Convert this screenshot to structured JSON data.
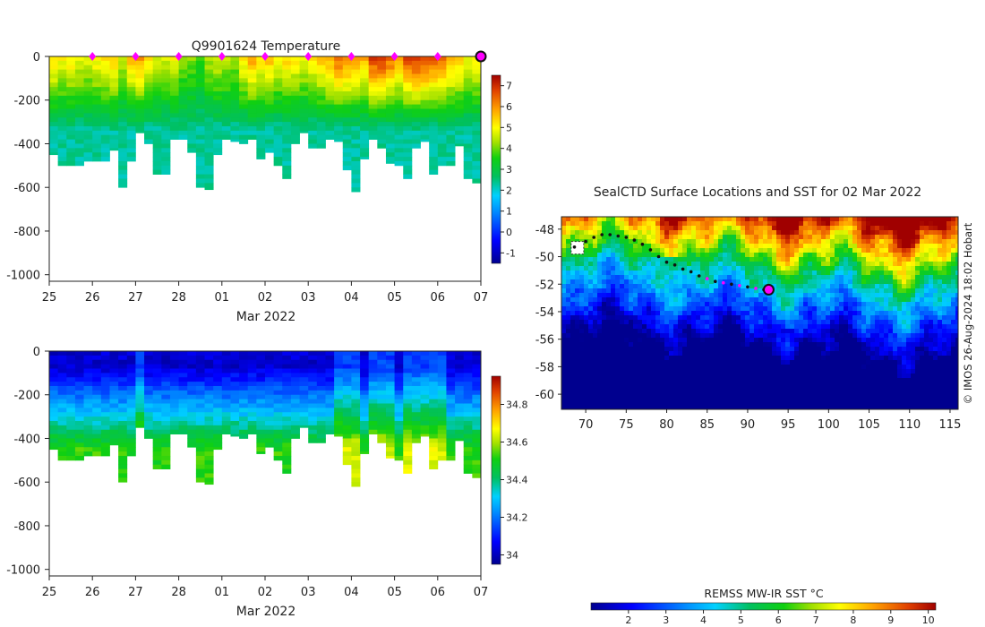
{
  "chart_data": [
    {
      "type": "heatmap",
      "panel": "temperature-section",
      "title": "Q9901624  Temperature",
      "xlabel": "Mar 2022",
      "x_tick_labels": [
        "25",
        "26",
        "27",
        "28",
        "01",
        "02",
        "03",
        "04",
        "05",
        "06",
        "07"
      ],
      "x_tick_values": [
        0,
        1,
        2,
        3,
        4,
        5,
        6,
        7,
        8,
        9,
        10
      ],
      "xlim": [
        0,
        10
      ],
      "ylabel": "",
      "y_ticks": [
        0,
        -200,
        -400,
        -600,
        -800,
        -1000
      ],
      "ylim": [
        -1030,
        0
      ],
      "profile_count": 50,
      "profile_max_depth": [
        450,
        500,
        500,
        500,
        480,
        480,
        480,
        430,
        600,
        480,
        350,
        400,
        540,
        540,
        380,
        380,
        440,
        600,
        610,
        450,
        380,
        390,
        400,
        380,
        470,
        440,
        500,
        560,
        400,
        350,
        420,
        420,
        380,
        390,
        520,
        620,
        470,
        380,
        420,
        490,
        500,
        560,
        420,
        390,
        540,
        500,
        500,
        410,
        560,
        580
      ],
      "surface_temp_values": [
        5.4,
        5.0,
        5.2,
        4.9,
        4.8,
        5.1,
        5.3,
        5.5,
        4.6,
        5.6,
        5.9,
        5.2,
        4.7,
        4.6,
        5.0,
        4.2,
        4.1,
        3.8,
        4.4,
        4.7,
        4.5,
        4.2,
        5.2,
        5.8,
        5.3,
        5.6,
        5.0,
        5.4,
        5.2,
        4.9,
        5.1,
        5.5,
        5.8,
        6.4,
        6.2,
        5.9,
        5.7,
        6.8,
        6.9,
        6.4,
        5.8,
        6.7,
        6.9,
        6.8,
        6.6,
        6.3,
        5.8,
        5.5,
        4.9,
        5.3
      ],
      "colorbar_ticks": [
        7,
        6,
        5,
        4,
        3,
        2,
        1,
        0,
        -1
      ],
      "colorbar_range": [
        -1.5,
        7.5
      ],
      "markers_dates": [
        1,
        2,
        3,
        4,
        5,
        6,
        7,
        8,
        9
      ],
      "current_marker_date": 10
    },
    {
      "type": "heatmap",
      "panel": "salinity-section",
      "title": "",
      "xlabel": "Mar 2022",
      "x_tick_labels": [
        "25",
        "26",
        "27",
        "28",
        "01",
        "02",
        "03",
        "04",
        "05",
        "06",
        "07"
      ],
      "x_tick_values": [
        0,
        1,
        2,
        3,
        4,
        5,
        6,
        7,
        8,
        9,
        10
      ],
      "xlim": [
        0,
        10
      ],
      "y_ticks": [
        0,
        -200,
        -400,
        -600,
        -800,
        -1000
      ],
      "ylim": [
        -1030,
        0
      ],
      "colorbar_ticks": [
        34.8,
        34.6,
        34.4,
        34.2,
        34
      ],
      "colorbar_range": [
        33.95,
        34.95
      ]
    },
    {
      "type": "heatmap",
      "panel": "sst-map",
      "title": "SealCTD Surface Locations and SST for 02 Mar 2022",
      "x_tick_labels": [
        "70",
        "75",
        "80",
        "85",
        "90",
        "95",
        "100",
        "105",
        "110",
        "115"
      ],
      "x_tick_values": [
        70,
        75,
        80,
        85,
        90,
        95,
        100,
        105,
        110,
        115
      ],
      "xlim": [
        67,
        116
      ],
      "y_tick_labels": [
        "-48",
        "-50",
        "-52",
        "-54",
        "-56",
        "-58",
        "-60"
      ],
      "y_tick_values": [
        -48,
        -50,
        -52,
        -54,
        -56,
        -58,
        -60
      ],
      "ylim": [
        -61.1,
        -47.1
      ],
      "track_points": [
        [
          68.6,
          -49.3
        ],
        [
          70.0,
          -48.9
        ],
        [
          71.0,
          -48.6
        ],
        [
          72.0,
          -48.4
        ],
        [
          73.0,
          -48.4
        ],
        [
          74.0,
          -48.5
        ],
        [
          75.0,
          -48.6
        ],
        [
          76.0,
          -48.8
        ],
        [
          77.0,
          -49.1
        ],
        [
          78.0,
          -49.5
        ],
        [
          79.0,
          -50.0
        ],
        [
          80.0,
          -50.4
        ],
        [
          81.0,
          -50.6
        ],
        [
          82.0,
          -50.9
        ],
        [
          83.0,
          -51.1
        ],
        [
          84.0,
          -51.4
        ],
        [
          85.0,
          -51.6
        ],
        [
          86.0,
          -51.8
        ],
        [
          87.0,
          -51.9
        ],
        [
          88.0,
          -52.0
        ],
        [
          89.0,
          -52.1
        ],
        [
          90.0,
          -52.2
        ],
        [
          91.0,
          -52.3
        ],
        [
          92.0,
          -52.4
        ],
        [
          92.6,
          -52.4
        ]
      ],
      "current_location": [
        92.6,
        -52.4
      ],
      "colorbar_label": "REMSS MW-IR SST °C",
      "colorbar_ticks": [
        2,
        3,
        4,
        5,
        6,
        7,
        8,
        9,
        10
      ],
      "colorbar_range": [
        1,
        10.2
      ],
      "credit": "© IMOS 26-Aug-2024 18:02 Hobart"
    }
  ],
  "colors": {
    "marker": "#ff00ff",
    "track": "#111111",
    "axis": "#222222"
  }
}
